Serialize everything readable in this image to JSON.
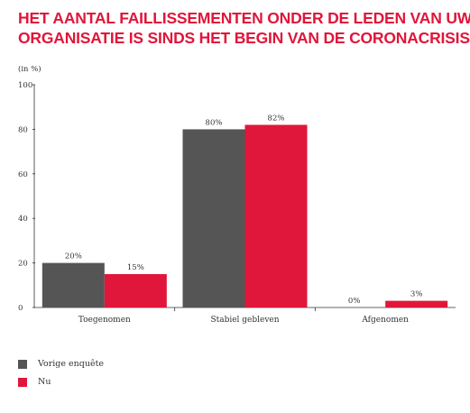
{
  "chart_data": {
    "type": "bar",
    "title_lines": [
      "HET AANTAL FAILLISSEMENTEN ONDER DE LEDEN VAN UW",
      "ORGANISATIE IS SINDS HET BEGIN VAN DE CORONACRISIS"
    ],
    "unit_label": "(in %)",
    "categories": [
      "Toegenomen",
      "Stabiel gebleven",
      "Afgenomen"
    ],
    "series": [
      {
        "name": "Vorige enquête",
        "values": [
          20,
          80,
          0
        ],
        "labels": [
          "20%",
          "80%",
          "0%"
        ],
        "color": "#555555"
      },
      {
        "name": "Nu",
        "values": [
          15,
          82,
          3
        ],
        "labels": [
          "15%",
          "82%",
          "3%"
        ],
        "color": "#e0163a"
      }
    ],
    "ylim": [
      0,
      100
    ],
    "yticks": [
      0,
      20,
      40,
      60,
      80,
      100
    ],
    "grid": false,
    "legend_position": "bottom-left"
  }
}
